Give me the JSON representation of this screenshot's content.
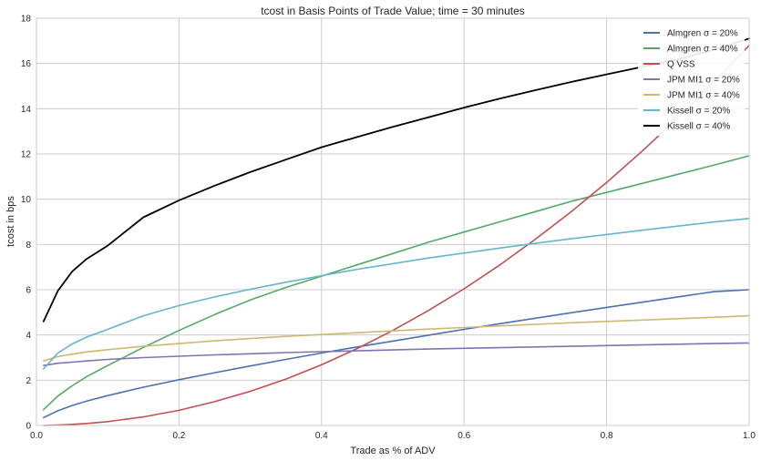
{
  "chart_data": {
    "type": "line",
    "title": "tcost in Basis Points of Trade Value; time = 30 minutes",
    "xlabel": "Trade as % of ADV",
    "ylabel": "tcost in bps",
    "xlim": [
      0.0,
      1.0
    ],
    "ylim": [
      0,
      18
    ],
    "xticks": [
      0.0,
      0.2,
      0.4,
      0.6,
      0.8,
      1.0
    ],
    "xtick_labels": [
      "0.0",
      "0.2",
      "0.4",
      "0.6",
      "0.8",
      "1.0"
    ],
    "yticks": [
      0,
      2,
      4,
      6,
      8,
      10,
      12,
      14,
      16,
      18
    ],
    "ytick_labels": [
      "0",
      "2",
      "4",
      "6",
      "8",
      "10",
      "12",
      "14",
      "16",
      "18"
    ],
    "grid": true,
    "legend_position": "top-right",
    "x": [
      0.01,
      0.03,
      0.05,
      0.07,
      0.1,
      0.15,
      0.2,
      0.25,
      0.3,
      0.35,
      0.4,
      0.45,
      0.5,
      0.55,
      0.6,
      0.65,
      0.7,
      0.75,
      0.8,
      0.85,
      0.9,
      0.95,
      1.0
    ],
    "series": [
      {
        "name": "Almgren σ = 20%",
        "color": "#4c72b0",
        "values": [
          0.35,
          0.65,
          0.88,
          1.07,
          1.32,
          1.69,
          2.02,
          2.33,
          2.63,
          2.92,
          3.2,
          3.47,
          3.73,
          3.99,
          4.25,
          4.5,
          4.74,
          4.98,
          5.22,
          5.45,
          5.68,
          5.91,
          6.0
        ]
      },
      {
        "name": "Almgren σ = 40%",
        "color": "#55a868",
        "values": [
          0.7,
          1.3,
          1.75,
          2.15,
          2.65,
          3.45,
          4.2,
          4.9,
          5.55,
          6.1,
          6.6,
          7.1,
          7.6,
          8.1,
          8.55,
          9.0,
          9.45,
          9.9,
          10.3,
          10.7,
          11.1,
          11.5,
          11.92
        ]
      },
      {
        "name": "Q VSS",
        "color": "#c44e52",
        "values": [
          0.0,
          0.02,
          0.05,
          0.09,
          0.17,
          0.38,
          0.67,
          1.05,
          1.51,
          2.05,
          2.68,
          3.4,
          4.2,
          5.08,
          6.04,
          7.09,
          8.23,
          9.44,
          10.74,
          12.13,
          13.6,
          15.15,
          16.8
        ]
      },
      {
        "name": "JPM MI1 σ = 20%",
        "color": "#8172b2",
        "values": [
          2.65,
          2.75,
          2.8,
          2.85,
          2.92,
          3.0,
          3.06,
          3.12,
          3.17,
          3.22,
          3.26,
          3.3,
          3.34,
          3.38,
          3.41,
          3.44,
          3.47,
          3.5,
          3.53,
          3.56,
          3.59,
          3.62,
          3.65
        ]
      },
      {
        "name": "JPM MI1 σ = 40%",
        "color": "#ccb974",
        "values": [
          2.85,
          3.05,
          3.15,
          3.25,
          3.35,
          3.5,
          3.62,
          3.74,
          3.84,
          3.94,
          4.02,
          4.1,
          4.18,
          4.26,
          4.33,
          4.4,
          4.47,
          4.54,
          4.6,
          4.66,
          4.72,
          4.78,
          4.85
        ]
      },
      {
        "name": "Kissell σ = 20%",
        "color": "#64b5cd",
        "values": [
          2.5,
          3.2,
          3.6,
          3.9,
          4.25,
          4.85,
          5.3,
          5.68,
          6.02,
          6.33,
          6.62,
          6.9,
          7.15,
          7.4,
          7.62,
          7.84,
          8.05,
          8.25,
          8.44,
          8.63,
          8.81,
          8.99,
          9.15
        ]
      },
      {
        "name": "Kissell σ = 40%",
        "color": "#000000",
        "values": [
          4.6,
          5.95,
          6.8,
          7.35,
          7.95,
          9.2,
          9.95,
          10.6,
          11.2,
          11.75,
          12.3,
          12.75,
          13.2,
          13.62,
          14.05,
          14.45,
          14.82,
          15.18,
          15.52,
          15.85,
          16.18,
          16.6,
          17.1
        ]
      }
    ]
  }
}
